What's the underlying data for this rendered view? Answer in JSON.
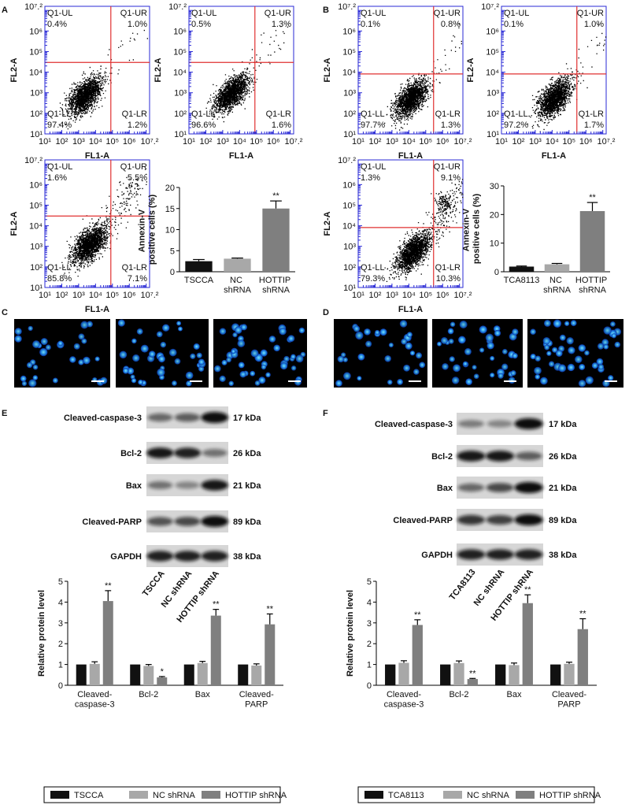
{
  "panel_labels": [
    "A",
    "B",
    "C",
    "D",
    "E",
    "F"
  ],
  "flow_axes": {
    "x_label": "FL1-A",
    "y_label": "FL2-A",
    "ticks": [
      "10¹",
      "10²",
      "10³",
      "10⁴",
      "10⁵",
      "10⁶",
      "10⁷.²"
    ]
  },
  "flow_plots": [
    {
      "quadrants": [
        [
          "Q1-UL",
          "0.4%"
        ],
        [
          "Q1-UR",
          "1.0%"
        ],
        [
          "Q1-LL",
          "97.4%"
        ],
        [
          "Q1-LR",
          "1.2%"
        ]
      ]
    },
    {
      "quadrants": [
        [
          "Q1-UL",
          "0.5%"
        ],
        [
          "Q1-UR",
          "1.3%"
        ],
        [
          "Q1-LL",
          "96.6%"
        ],
        [
          "Q1-LR",
          "1.6%"
        ]
      ]
    },
    {
      "quadrants": [
        [
          "Q1-UL",
          "1.6%"
        ],
        [
          "Q1-UR",
          "5.5%"
        ],
        [
          "Q1-LL",
          "85.8%"
        ],
        [
          "Q1-LR",
          "7.1%"
        ]
      ]
    },
    {
      "quadrants": [
        [
          "Q1-UL",
          "0.1%"
        ],
        [
          "Q1-UR",
          "0.8%"
        ],
        [
          "Q1-LL",
          "97.7%"
        ],
        [
          "Q1-LR",
          "1.3%"
        ]
      ]
    },
    {
      "quadrants": [
        [
          "Q1-UL",
          "0.1%"
        ],
        [
          "Q1-UR",
          "1.0%"
        ],
        [
          "Q1-LL",
          "97.2%"
        ],
        [
          "Q1-LR",
          "1.7%"
        ]
      ]
    },
    {
      "quadrants": [
        [
          "Q1-UL",
          "1.3%"
        ],
        [
          "Q1-UR",
          "9.1%"
        ],
        [
          "Q1-LL",
          "79.3%"
        ],
        [
          "Q1-LR",
          "10.3%"
        ]
      ]
    }
  ],
  "blots": [
    {
      "rows": [
        [
          "Cleaved-caspase-3",
          "17 kDa"
        ],
        [
          "Bcl-2",
          "26 kDa"
        ],
        [
          "Bax",
          "21 kDa"
        ],
        [
          "Cleaved-PARP",
          "89 kDa"
        ],
        [
          "GAPDH",
          "38 kDa"
        ]
      ],
      "lanes": [
        "TSCCA",
        "NC shRNA",
        "HOTTIP shRNA"
      ]
    },
    {
      "rows": [
        [
          "Cleaved-caspase-3",
          "17 kDa"
        ],
        [
          "Bcl-2",
          "26 kDa"
        ],
        [
          "Bax",
          "21 kDa"
        ],
        [
          "Cleaved-PARP",
          "89 kDa"
        ],
        [
          "GAPDH",
          "38 kDa"
        ]
      ],
      "lanes": [
        "TCA8113",
        "NC shRNA",
        "HOTTIP shRNA"
      ]
    }
  ],
  "chart_data": [
    {
      "type": "bar",
      "y_label": "Annexin-V positive cells (%)",
      "categories": [
        "TSCCA",
        "NC shRNA",
        "HOTTIP shRNA"
      ],
      "values": [
        2.5,
        3.1,
        15
      ],
      "errors": [
        0.4,
        0.15,
        1.8
      ],
      "colors": [
        "#111111",
        "#a8a8a8",
        "#7f7f7f"
      ],
      "significance": [
        null,
        null,
        "**"
      ],
      "ylim": [
        0,
        20
      ],
      "yticks": [
        0,
        5,
        10,
        15,
        20
      ]
    },
    {
      "type": "bar",
      "y_label": "Annexin-V positive cells (%)",
      "categories": [
        "TCA8113",
        "NC shRNA",
        "HOTTIP shRNA"
      ],
      "values": [
        1.8,
        2.6,
        21.2
      ],
      "errors": [
        0.2,
        0.3,
        3
      ],
      "colors": [
        "#111111",
        "#a8a8a8",
        "#7f7f7f"
      ],
      "significance": [
        null,
        null,
        "**"
      ],
      "ylim": [
        0,
        30
      ],
      "yticks": [
        0,
        10,
        20,
        30
      ]
    },
    {
      "type": "grouped_bar",
      "y_label": "Relative protein level",
      "categories": [
        "Cleaved-caspase-3",
        "Bcl-2",
        "Bax",
        "Cleaved-PARP"
      ],
      "series": [
        {
          "name": "TSCCA",
          "color": "#111111",
          "values": [
            1,
            1,
            1,
            1
          ]
        },
        {
          "name": "NC shRNA",
          "color": "#a8a8a8",
          "values": [
            1.03,
            0.93,
            1.07,
            0.95
          ],
          "errors": [
            0.1,
            0.07,
            0.08,
            0.08
          ]
        },
        {
          "name": "HOTTIP shRNA",
          "color": "#7f7f7f",
          "values": [
            4.05,
            0.38,
            3.35,
            2.93
          ],
          "errors": [
            0.5,
            0.04,
            0.3,
            0.5
          ],
          "significance": [
            "**",
            "*",
            "**",
            "**"
          ]
        }
      ],
      "ylim": [
        0,
        5
      ],
      "yticks": [
        0,
        1,
        2,
        3,
        4,
        5
      ],
      "legend": "bottom"
    },
    {
      "type": "grouped_bar",
      "y_label": "Relative protein level",
      "categories": [
        "Cleaved-caspase-3",
        "Bcl-2",
        "Bax",
        "Cleaved-PARP"
      ],
      "series": [
        {
          "name": "TCA8113",
          "color": "#111111",
          "values": [
            1,
            1,
            1,
            1
          ]
        },
        {
          "name": "NC shRNA",
          "color": "#a8a8a8",
          "values": [
            1.08,
            1.07,
            0.97,
            1.03
          ],
          "errors": [
            0.1,
            0.1,
            0.1,
            0.08
          ]
        },
        {
          "name": "HOTTIP shRNA",
          "color": "#7f7f7f",
          "values": [
            2.9,
            0.3,
            3.95,
            2.7
          ],
          "errors": [
            0.25,
            0.03,
            0.4,
            0.5
          ],
          "significance": [
            "**",
            "**",
            "**",
            "**"
          ]
        }
      ],
      "ylim": [
        0,
        5
      ],
      "yticks": [
        0,
        1,
        2,
        3,
        4,
        5
      ],
      "legend": "bottom"
    }
  ]
}
